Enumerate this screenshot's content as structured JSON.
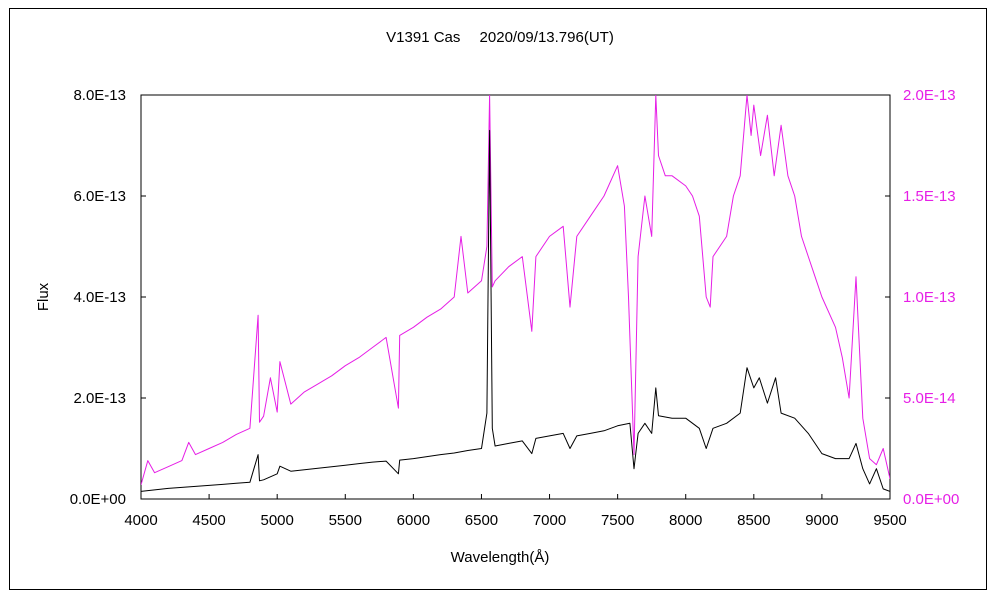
{
  "chart_data": {
    "type": "line",
    "title": "V1391 Cas　 2020/09/13.796(UT)",
    "xlabel": "Wavelength(Å)",
    "ylabel": "Flux",
    "xlim": [
      4000,
      9500
    ],
    "ylim_left": [
      0,
      8e-13
    ],
    "ylim_right": [
      0,
      2e-13
    ],
    "x_ticks": [
      "4000",
      "4500",
      "5000",
      "5500",
      "6000",
      "6500",
      "7000",
      "7500",
      "8000",
      "8500",
      "9000",
      "9500"
    ],
    "y_ticks_left": [
      "0.0E+00",
      "2.0E-13",
      "4.0E-13",
      "6.0E-13",
      "8.0E-13"
    ],
    "y_ticks_right": [
      "0.0E+00",
      "5.0E-14",
      "1.0E-13",
      "1.5E-13",
      "2.0E-13"
    ],
    "grid": false,
    "series": [
      {
        "axis": "left",
        "color": "#000000",
        "x": [
          4000,
          4100,
          4200,
          4300,
          4400,
          4500,
          4600,
          4700,
          4800,
          4860,
          4870,
          4900,
          5000,
          5020,
          5100,
          5200,
          5300,
          5400,
          5500,
          5600,
          5700,
          5800,
          5890,
          5900,
          6000,
          6100,
          6200,
          6300,
          6400,
          6500,
          6540,
          6560,
          6580,
          6600,
          6700,
          6800,
          6870,
          6900,
          7000,
          7100,
          7150,
          7200,
          7300,
          7400,
          7500,
          7590,
          7620,
          7650,
          7700,
          7750,
          7780,
          7800,
          7900,
          8000,
          8100,
          8150,
          8200,
          8300,
          8400,
          8450,
          8500,
          8540,
          8600,
          8660,
          8700,
          8800,
          8900,
          9000,
          9100,
          9200,
          9250,
          9300,
          9350,
          9400,
          9450,
          9500
        ],
        "values": [
          1.5e-14,
          1.8e-14,
          2.1e-14,
          2.3e-14,
          2.5e-14,
          2.7e-14,
          2.9e-14,
          3.1e-14,
          3.3e-14,
          8.8e-14,
          3.6e-14,
          3.8e-14,
          5e-14,
          6.5e-14,
          5.5e-14,
          5.8e-14,
          6.1e-14,
          6.4e-14,
          6.7e-14,
          7e-14,
          7.3e-14,
          7.5e-14,
          5e-14,
          7.7e-14,
          8e-14,
          8.4e-14,
          8.8e-14,
          9.1e-14,
          9.6e-14,
          1e-13,
          1.7e-13,
          7.3e-13,
          1.4e-13,
          1.05e-13,
          1.1e-13,
          1.15e-13,
          9e-14,
          1.2e-13,
          1.25e-13,
          1.3e-13,
          1e-13,
          1.25e-13,
          1.3e-13,
          1.35e-13,
          1.45e-13,
          1.5e-13,
          6e-14,
          1.3e-13,
          1.5e-13,
          1.3e-13,
          2.2e-13,
          1.65e-13,
          1.6e-13,
          1.6e-13,
          1.4e-13,
          1e-13,
          1.4e-13,
          1.5e-13,
          1.7e-13,
          2.6e-13,
          2.2e-13,
          2.4e-13,
          1.9e-13,
          2.4e-13,
          1.7e-13,
          1.6e-13,
          1.3e-13,
          9e-14,
          8e-14,
          8e-14,
          1.1e-13,
          6e-14,
          3e-14,
          6e-14,
          2e-14,
          1.5e-14
        ]
      },
      {
        "axis": "right",
        "color": "#e61ee6",
        "x": [
          4000,
          4050,
          4100,
          4200,
          4300,
          4350,
          4400,
          4500,
          4600,
          4700,
          4800,
          4860,
          4870,
          4900,
          4950,
          5000,
          5020,
          5100,
          5200,
          5300,
          5400,
          5500,
          5600,
          5700,
          5800,
          5890,
          5900,
          6000,
          6100,
          6200,
          6300,
          6350,
          6400,
          6500,
          6540,
          6560,
          6580,
          6600,
          6700,
          6800,
          6870,
          6900,
          7000,
          7100,
          7150,
          7200,
          7300,
          7400,
          7500,
          7550,
          7580,
          7600,
          7620,
          7650,
          7700,
          7750,
          7780,
          7800,
          7850,
          7900,
          8000,
          8050,
          8100,
          8150,
          8180,
          8200,
          8300,
          8350,
          8400,
          8450,
          8480,
          8500,
          8550,
          8600,
          8650,
          8700,
          8750,
          8800,
          8850,
          8900,
          8950,
          9000,
          9100,
          9150,
          9200,
          9250,
          9300,
          9350,
          9400,
          9450,
          9500
        ],
        "values": [
          7e-15,
          1.9e-14,
          1.3e-14,
          1.6e-14,
          1.9e-14,
          2.8e-14,
          2.2e-14,
          2.5e-14,
          2.8e-14,
          3.2e-14,
          3.5e-14,
          9.1e-14,
          3.8e-14,
          4.1e-14,
          6e-14,
          4.3e-14,
          6.8e-14,
          4.7e-14,
          5.3e-14,
          5.7e-14,
          6.1e-14,
          6.6e-14,
          7e-14,
          7.5e-14,
          8e-14,
          4.5e-14,
          8.1e-14,
          8.5e-14,
          9e-14,
          9.4e-14,
          1e-13,
          1.3e-13,
          1.02e-13,
          1.08e-13,
          1.25e-13,
          2e-13,
          1.05e-13,
          1.08e-13,
          1.15e-13,
          1.2e-13,
          8.3e-14,
          1.2e-13,
          1.3e-13,
          1.35e-13,
          9.5e-14,
          1.3e-13,
          1.4e-13,
          1.5e-13,
          1.65e-13,
          1.45e-13,
          1e-13,
          6e-14,
          2.2e-14,
          1.2e-13,
          1.5e-13,
          1.3e-13,
          2e-13,
          1.7e-13,
          1.6e-13,
          1.6e-13,
          1.55e-13,
          1.5e-13,
          1.4e-13,
          1e-13,
          9.5e-14,
          1.2e-13,
          1.3e-13,
          1.5e-13,
          1.6e-13,
          2e-13,
          1.8e-13,
          1.95e-13,
          1.7e-13,
          1.9e-13,
          1.6e-13,
          1.85e-13,
          1.6e-13,
          1.5e-13,
          1.3e-13,
          1.2e-13,
          1.1e-13,
          1e-13,
          8.5e-14,
          7e-14,
          5e-14,
          1.1e-13,
          4e-14,
          2e-14,
          1.7e-14,
          2.5e-14,
          1e-14
        ]
      }
    ]
  }
}
